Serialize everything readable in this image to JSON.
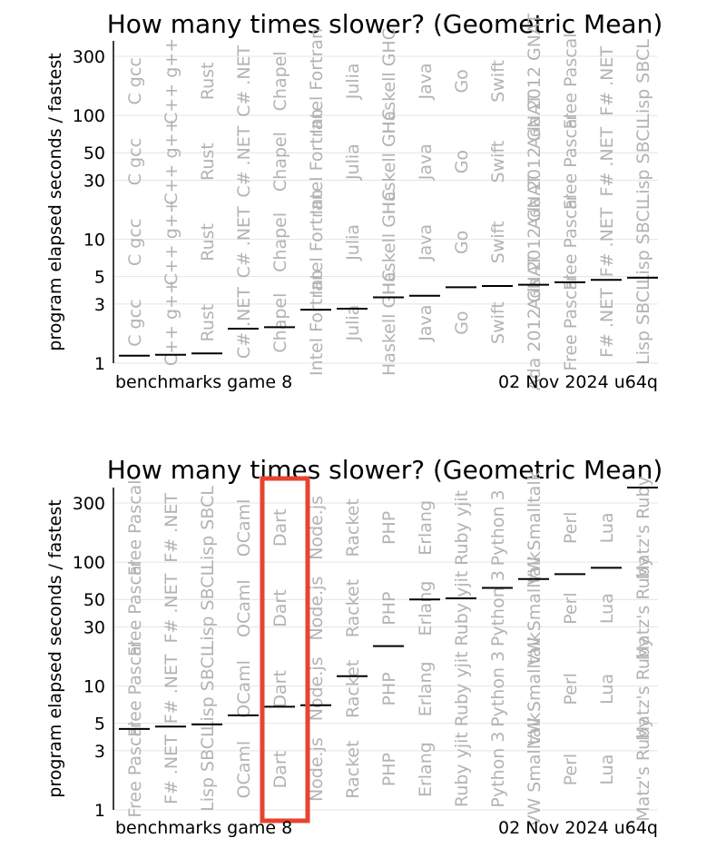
{
  "chart_data": [
    {
      "type": "scatter",
      "title": "How many times slower? (Geometric Mean)",
      "ylabel": "program elapsed seconds / fastest",
      "yscale": "log",
      "ylim": [
        1,
        400
      ],
      "yticks": [
        1,
        3,
        5,
        10,
        30,
        50,
        100,
        300
      ],
      "footer_left": "benchmarks game 8",
      "footer_right": "02 Nov 2024 u64q",
      "categories": [
        "C gcc",
        "C++ g++",
        "Rust",
        "C# .NET",
        "Chapel",
        "Intel Fortran",
        "Julia",
        "Haskell GHC",
        "Java",
        "Go",
        "Swift",
        "Ada 2012 GNAT",
        "Free Pascal",
        "F# .NET",
        "Lisp SBCL"
      ],
      "values": [
        1.15,
        1.17,
        1.2,
        1.9,
        1.95,
        2.7,
        2.75,
        3.4,
        3.5,
        4.1,
        4.2,
        4.3,
        4.5,
        4.7,
        4.9
      ],
      "highlight": null
    },
    {
      "type": "scatter",
      "title": "How many times slower? (Geometric Mean)",
      "ylabel": "program elapsed seconds / fastest",
      "yscale": "log",
      "ylim": [
        1,
        400
      ],
      "yticks": [
        1,
        3,
        5,
        10,
        30,
        50,
        100,
        300
      ],
      "footer_left": "benchmarks game 8",
      "footer_right": "02 Nov 2024 u64q",
      "categories": [
        "Free Pascal",
        "F# .NET",
        "Lisp SBCL",
        "OCaml",
        "Dart",
        "Node.js",
        "Racket",
        "PHP",
        "Erlang",
        "Ruby yjit",
        "Python 3",
        "VW Smalltalk",
        "Perl",
        "Lua",
        "Matz's Ruby"
      ],
      "values": [
        4.5,
        4.7,
        4.9,
        5.8,
        6.8,
        7.0,
        12,
        21,
        50,
        51,
        62,
        73,
        80,
        90,
        400
      ],
      "highlight": "Dart",
      "highlight_color": "#e8432e"
    }
  ]
}
